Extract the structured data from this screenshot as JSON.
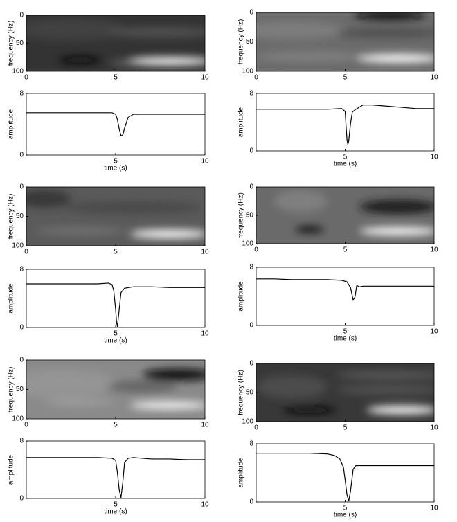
{
  "chart_data": [
    {
      "type": "spectrogram",
      "xlim": [
        0,
        10
      ],
      "xticks": [
        0,
        5,
        10
      ],
      "ylim": [
        0,
        100
      ],
      "yticks": [
        0,
        50,
        100
      ],
      "y_reversed": true,
      "ylabel": "frequency (Hz)"
    },
    {
      "type": "line",
      "x": [
        0,
        1,
        2,
        3,
        4,
        4.8,
        5,
        5.1,
        5.2,
        5.3,
        5.4,
        5.5,
        5.7,
        6,
        7,
        8,
        9,
        10
      ],
      "values": [
        5.5,
        5.5,
        5.5,
        5.5,
        5.5,
        5.5,
        5.3,
        4.6,
        3.4,
        2.5,
        2.6,
        3.5,
        4.9,
        5.3,
        5.3,
        5.3,
        5.3,
        5.3
      ],
      "color": "#000000",
      "xlim": [
        0,
        10
      ],
      "xticks": [
        5,
        10
      ],
      "ylim": [
        0,
        8
      ],
      "yticks": [
        0,
        8
      ],
      "ylabel": "amplitude",
      "xlabel": "time (s)"
    },
    {
      "type": "spectrogram",
      "xlim": [
        0,
        10
      ],
      "xticks": [
        0,
        5,
        10
      ],
      "ylim": [
        0,
        100
      ],
      "yticks": [
        0,
        50,
        100
      ],
      "y_reversed": true,
      "ylabel": "frequency (Hz)"
    },
    {
      "type": "line",
      "x": [
        0,
        1,
        2,
        3,
        4,
        4.8,
        5,
        5.05,
        5.1,
        5.15,
        5.2,
        5.3,
        5.4,
        5.6,
        6,
        6.5,
        7,
        8,
        9,
        10
      ],
      "values": [
        5.8,
        5.8,
        5.8,
        5.8,
        5.8,
        5.9,
        5.5,
        3.5,
        1.6,
        0.9,
        1.4,
        3.8,
        5.4,
        5.8,
        6.4,
        6.4,
        6.3,
        6.1,
        5.9,
        5.9
      ],
      "color": "#000000",
      "xlim": [
        0,
        10
      ],
      "xticks": [
        5,
        10
      ],
      "ylim": [
        0,
        8
      ],
      "yticks": [
        0,
        8
      ],
      "ylabel": "amplitude",
      "xlabel": "time (s)"
    },
    {
      "type": "spectrogram",
      "xlim": [
        0,
        10
      ],
      "xticks": [
        0,
        5,
        10
      ],
      "ylim": [
        0,
        100
      ],
      "yticks": [
        0,
        50,
        100
      ],
      "y_reversed": true,
      "ylabel": "frequency (Hz)"
    },
    {
      "type": "line",
      "x": [
        0,
        1,
        2,
        3,
        4,
        4.6,
        4.8,
        4.9,
        5,
        5.05,
        5.1,
        5.2,
        5.3,
        5.5,
        6,
        7,
        8,
        9,
        10
      ],
      "values": [
        6.0,
        6.0,
        6.0,
        6.0,
        6.0,
        6.1,
        5.9,
        5.0,
        2.5,
        0.8,
        0.1,
        2.5,
        4.8,
        5.4,
        5.6,
        5.6,
        5.5,
        5.5,
        5.5
      ],
      "color": "#000000",
      "xlim": [
        0,
        10
      ],
      "xticks": [
        5,
        10
      ],
      "ylim": [
        0,
        8
      ],
      "yticks": [
        0,
        8
      ],
      "ylabel": "amplitude",
      "xlabel": "time (s)"
    },
    {
      "type": "spectrogram",
      "xlim": [
        0,
        10
      ],
      "xticks": [
        0,
        5,
        10
      ],
      "ylim": [
        0,
        100
      ],
      "yticks": [
        0,
        50,
        100
      ],
      "y_reversed": true,
      "ylabel": "frequency (Hz)"
    },
    {
      "type": "line",
      "x": [
        0,
        1,
        2,
        3,
        4,
        4.8,
        5.1,
        5.3,
        5.45,
        5.55,
        5.65,
        5.8,
        6,
        7,
        8,
        9,
        10
      ],
      "values": [
        6.4,
        6.4,
        6.3,
        6.3,
        6.3,
        6.2,
        6.0,
        5.2,
        3.5,
        3.9,
        5.5,
        5.3,
        5.4,
        5.4,
        5.4,
        5.4,
        5.4
      ],
      "color": "#000000",
      "xlim": [
        0,
        10
      ],
      "xticks": [
        5,
        10
      ],
      "ylim": [
        0,
        8
      ],
      "yticks": [
        0,
        8
      ],
      "ylabel": "amplitude",
      "xlabel": "time (s)"
    },
    {
      "type": "spectrogram",
      "xlim": [
        0,
        10
      ],
      "xticks": [
        0,
        5,
        10
      ],
      "ylim": [
        0,
        100
      ],
      "yticks": [
        0,
        50,
        100
      ],
      "y_reversed": true,
      "ylabel": "frequency (Hz)"
    },
    {
      "type": "line",
      "x": [
        0,
        1,
        2,
        3,
        4,
        4.8,
        5,
        5.1,
        5.2,
        5.3,
        5.4,
        5.5,
        5.7,
        6,
        7,
        8,
        9,
        10
      ],
      "values": [
        5.7,
        5.7,
        5.7,
        5.7,
        5.7,
        5.6,
        5.3,
        3.6,
        1.2,
        0.1,
        2.2,
        5.0,
        5.6,
        5.7,
        5.5,
        5.5,
        5.4,
        5.4
      ],
      "color": "#000000",
      "xlim": [
        0,
        10
      ],
      "xticks": [
        5,
        10
      ],
      "ylim": [
        0,
        8
      ],
      "yticks": [
        0,
        8
      ],
      "ylabel": "amplitude",
      "xlabel": "time (s)"
    },
    {
      "type": "spectrogram",
      "xlim": [
        0,
        10
      ],
      "xticks": [
        0,
        5,
        10
      ],
      "ylim": [
        0,
        100
      ],
      "yticks": [
        0,
        50,
        100
      ],
      "y_reversed": true,
      "ylabel": "frequency (Hz)"
    },
    {
      "type": "line",
      "x": [
        0,
        1,
        2,
        3,
        4,
        4.4,
        4.7,
        4.9,
        5,
        5.1,
        5.2,
        5.3,
        5.45,
        5.6,
        6,
        7,
        8,
        9,
        10
      ],
      "values": [
        6.7,
        6.7,
        6.7,
        6.7,
        6.6,
        6.4,
        5.9,
        4.8,
        3.0,
        1.0,
        0.1,
        1.5,
        4.5,
        5.0,
        5.0,
        5.0,
        5.0,
        5.0,
        5.0
      ],
      "color": "#000000",
      "xlim": [
        0,
        10
      ],
      "xticks": [
        5,
        10
      ],
      "ylim": [
        0,
        8
      ],
      "yticks": [
        0,
        8
      ],
      "ylabel": "amplitude",
      "xlabel": "time (s)"
    }
  ]
}
